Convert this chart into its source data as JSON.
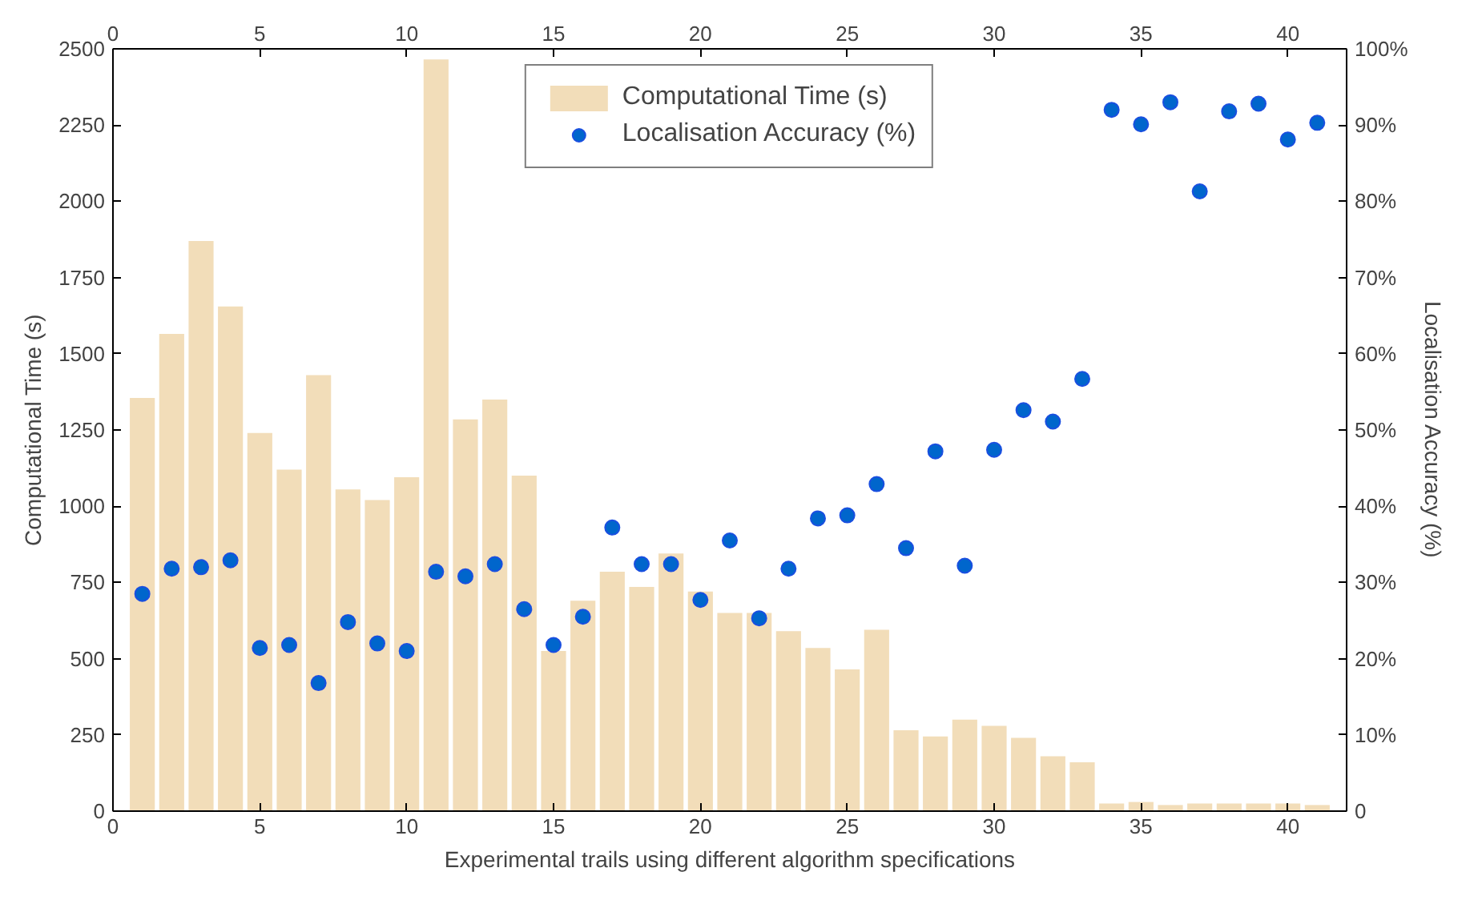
{
  "chart_data": {
    "type": "bar",
    "xlabel": "Experimental trails using different algorithm specifications",
    "ylabel": "Computational Time (s)",
    "y2label": "Localisation Accuracy (%)",
    "x": [
      1,
      2,
      3,
      4,
      5,
      6,
      7,
      8,
      9,
      10,
      11,
      12,
      13,
      14,
      15,
      16,
      17,
      18,
      19,
      20,
      21,
      22,
      23,
      24,
      25,
      26,
      27,
      28,
      29,
      30,
      31,
      32,
      33,
      34,
      35,
      36,
      37,
      38,
      39,
      40,
      41
    ],
    "series": [
      {
        "name": "Computational Time (s)",
        "color": "#f2ddb9",
        "values": [
          1355,
          1565,
          1870,
          1655,
          1240,
          1120,
          1430,
          1055,
          1020,
          1095,
          2465,
          1285,
          1350,
          1100,
          525,
          690,
          785,
          735,
          845,
          720,
          650,
          650,
          590,
          535,
          465,
          595,
          265,
          245,
          300,
          280,
          240,
          180,
          160,
          25,
          30,
          20,
          25,
          25,
          25,
          25,
          20
        ]
      },
      {
        "name": "Localisation Accuracy (%)",
        "type": "scatter",
        "axis": "y2",
        "color": "#0066cc",
        "values": [
          28.5,
          31.8,
          32,
          32.9,
          21.4,
          21.8,
          16.8,
          24.8,
          22,
          21,
          31.4,
          30.8,
          32.4,
          26.5,
          21.8,
          25.5,
          37.2,
          32.4,
          32.4,
          27.7,
          35.5,
          25.3,
          31.8,
          38.4,
          38.8,
          42.9,
          34.5,
          47.2,
          32.2,
          47.4,
          52.6,
          51.1,
          56.7,
          92,
          90.1,
          93,
          81.3,
          91.8,
          92.8,
          88.1,
          90.3
        ]
      }
    ],
    "xlim": [
      0,
      42
    ],
    "xticks": [
      0,
      5,
      10,
      15,
      20,
      25,
      30,
      35,
      40
    ],
    "x2lim": [
      0,
      42
    ],
    "x2ticks": [
      0,
      5,
      10,
      15,
      20,
      25,
      30,
      35,
      40
    ],
    "ylim": [
      0,
      2500
    ],
    "yticks": [
      0,
      250,
      500,
      750,
      1000,
      1250,
      1500,
      1750,
      2000,
      2250,
      2500
    ],
    "y2lim": [
      0,
      100
    ],
    "y2ticks": [
      0,
      {
        "value": 10,
        "label": "10%"
      },
      {
        "value": 20,
        "label": "20%"
      },
      {
        "value": 30,
        "label": "30%"
      },
      {
        "value": 40,
        "label": "40%"
      },
      {
        "value": 50,
        "label": "50%"
      },
      {
        "value": 60,
        "label": "60%"
      },
      {
        "value": 70,
        "label": "70%"
      },
      {
        "value": 80,
        "label": "80%"
      },
      {
        "value": 90,
        "label": "90%"
      },
      {
        "value": 100,
        "label": "100%"
      }
    ],
    "grid": false,
    "legend": "top",
    "marker": "circle"
  }
}
